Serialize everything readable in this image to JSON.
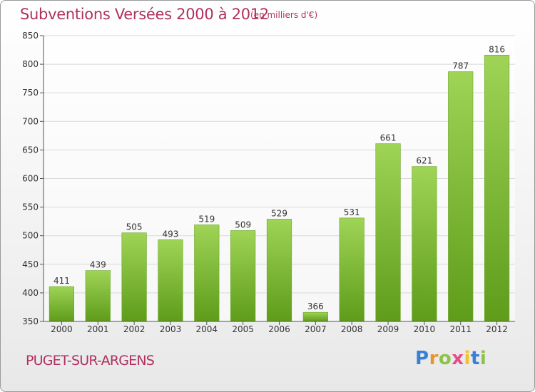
{
  "header": {
    "title": "Subventions Versées 2000 à 2012",
    "subtitle": "(en milliers d'€)"
  },
  "footer": {
    "commune": "PUGET-SUR-ARGENS",
    "logo_text": "Proxiti",
    "logo_letters": [
      {
        "char": "P",
        "color": "#3a7fd5"
      },
      {
        "char": "r",
        "color": "#e8962c"
      },
      {
        "char": "o",
        "color": "#8bc34a"
      },
      {
        "char": "x",
        "color": "#e84b8a"
      },
      {
        "char": "i",
        "color": "#f2c12e"
      },
      {
        "char": "t",
        "color": "#3a7fd5"
      },
      {
        "char": "i",
        "color": "#8bc34a"
      }
    ]
  },
  "colors": {
    "bar_top": "#9fd456",
    "bar_bottom": "#5e9c1a",
    "grid": "#d9d9d9",
    "axis": "#555555",
    "text": "#333333",
    "title": "#b03060"
  },
  "chart_data": {
    "type": "bar",
    "title": "Subventions Versées 2000 à 2012",
    "subtitle": "(en milliers d'€)",
    "categories": [
      "2000",
      "2001",
      "2002",
      "2003",
      "2004",
      "2005",
      "2006",
      "2007",
      "2008",
      "2009",
      "2010",
      "2011",
      "2012"
    ],
    "values": [
      411,
      439,
      505,
      493,
      519,
      509,
      529,
      366,
      531,
      661,
      621,
      787,
      816
    ],
    "yticks": [
      350,
      400,
      450,
      500,
      550,
      600,
      650,
      700,
      750,
      800,
      850
    ],
    "ylim": [
      350,
      850
    ],
    "grid": true,
    "show_value_labels": true
  }
}
